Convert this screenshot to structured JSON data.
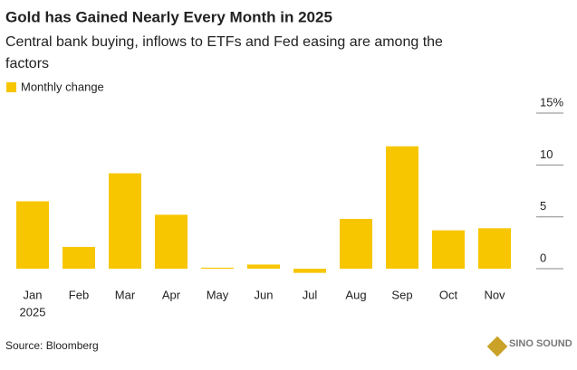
{
  "chart_data": {
    "type": "bar",
    "title": "Gold has Gained Nearly Every Month in 2025",
    "subtitle": [
      "Central bank buying, inflows to ETFs and Fed easing are among the",
      "factors"
    ],
    "legend": "Monthly change",
    "categories": [
      "Jan",
      "Feb",
      "Mar",
      "Apr",
      "May",
      "Jun",
      "Jul",
      "Aug",
      "Sep",
      "Oct",
      "Nov"
    ],
    "year_label": "2025",
    "values": [
      6.5,
      2.1,
      9.2,
      5.2,
      0.1,
      0.4,
      -0.4,
      4.8,
      11.8,
      3.7,
      3.9
    ],
    "color": "#f7c600",
    "ylim": [
      -1,
      15
    ],
    "yticks": [
      0,
      5,
      10,
      {
        "value": 15,
        "label": "15%"
      }
    ],
    "source": "Source: Bloomberg",
    "watermark": "SINO SOUND"
  }
}
